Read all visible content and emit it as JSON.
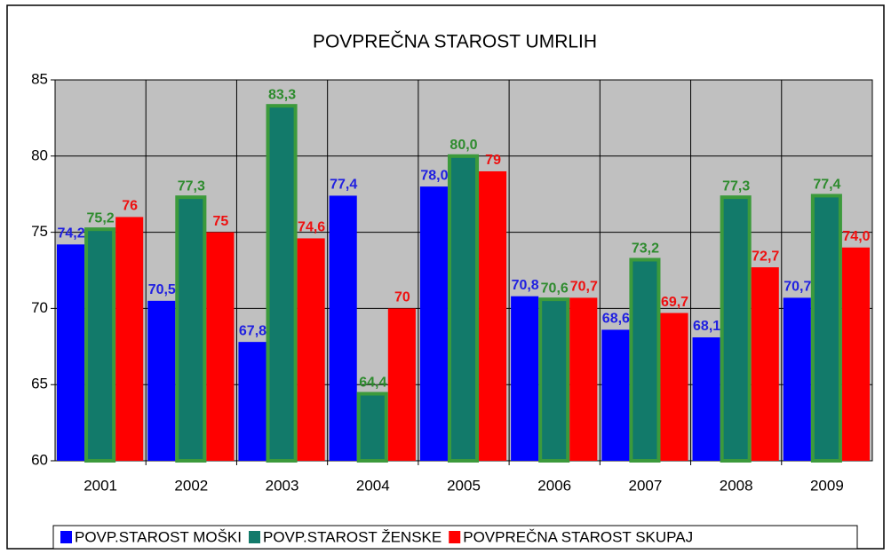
{
  "chart_data": {
    "type": "bar",
    "title": "POVPREČNA STAROST UMRLIH",
    "categories": [
      "2001",
      "2002",
      "2003",
      "2004",
      "2005",
      "2006",
      "2007",
      "2008",
      "2009"
    ],
    "series": [
      {
        "name": "POVP.STAROST MOŠKI",
        "color": "#0000ff",
        "label_color": "#2020e0",
        "values": [
          74.2,
          70.5,
          67.8,
          77.4,
          78.0,
          70.8,
          68.6,
          68.1,
          70.7
        ],
        "value_labels": [
          "74,2",
          "70,5",
          "67,8",
          "77,4",
          "78,0",
          "70,8",
          "68,6",
          "68,1",
          "70,7"
        ]
      },
      {
        "name": "POVP.STAROST ŽENSKE",
        "color": "#127a6a",
        "edgecolor": "#3c9a3c",
        "label_color": "#2e8b2e",
        "values": [
          75.2,
          77.3,
          83.3,
          64.4,
          80.0,
          70.6,
          73.2,
          77.3,
          77.4
        ],
        "value_labels": [
          "75,2",
          "77,3",
          "83,3",
          "64,4",
          "80,0",
          "70,6",
          "73,2",
          "77,3",
          "77,4"
        ]
      },
      {
        "name": "POVPREČNA STAROST SKUPAJ",
        "color": "#ff0000",
        "label_color": "#ee1010",
        "values": [
          76,
          75,
          74.6,
          70,
          79,
          70.7,
          69.7,
          72.7,
          74.0
        ],
        "value_labels": [
          "76",
          "75",
          "74,6",
          "70",
          "79",
          "70,7",
          "69,7",
          "72,7",
          "74,0"
        ]
      }
    ],
    "ylim": [
      60,
      85
    ],
    "yticks": [
      60,
      65,
      70,
      75,
      80,
      85
    ],
    "grid": true,
    "legend": "bottom",
    "plot_background": "#c0c0c0"
  }
}
